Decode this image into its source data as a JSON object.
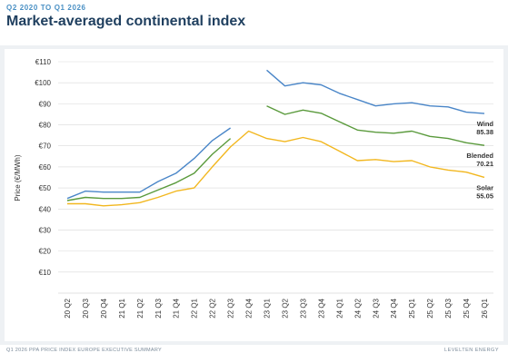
{
  "header": {
    "subtitle": "Q2 2020 TO Q1 2026",
    "title": "Market-averaged continental index"
  },
  "footer": {
    "left": "Q1 2026 PPA PRICE INDEX EUROPE EXECUTIVE SUMMARY",
    "right": "LEVELTEN ENERGY"
  },
  "colors": {
    "wind": "#4a86c8",
    "blended": "#5a9a3c",
    "solar": "#f2b71f",
    "grid": "#d9d9d9"
  },
  "chart_data": {
    "type": "line",
    "title": "Market-averaged continental index",
    "ylabel": "Price (€/MWh)",
    "xlabel": "",
    "ylim": [
      0,
      110
    ],
    "yticks": [
      "€10",
      "€20",
      "€30",
      "€40",
      "€50",
      "€60",
      "€70",
      "€80",
      "€90",
      "€100",
      "€110"
    ],
    "ytick_values": [
      10,
      20,
      30,
      40,
      50,
      60,
      70,
      80,
      90,
      100,
      110
    ],
    "grid": true,
    "categories": [
      "20 Q2",
      "20 Q3",
      "20 Q4",
      "21 Q1",
      "21 Q2",
      "21 Q3",
      "21 Q4",
      "22 Q1",
      "22 Q2",
      "22 Q3",
      "22 Q4",
      "23 Q1",
      "23 Q2",
      "23 Q3",
      "23 Q4",
      "24 Q1",
      "24 Q2",
      "24 Q3",
      "24 Q4",
      "25 Q1",
      "25 Q2",
      "25 Q3",
      "25 Q4",
      "26 Q1"
    ],
    "series": [
      {
        "name": "Wind",
        "end_label": "85.38",
        "key": "wind",
        "values": [
          45,
          48.5,
          48,
          48,
          48,
          53,
          57,
          64,
          72.5,
          78.5,
          null,
          106,
          98.5,
          100,
          99,
          95,
          92,
          89,
          90,
          90.5,
          89,
          88.5,
          86,
          85.38
        ]
      },
      {
        "name": "Blended",
        "end_label": "70.21",
        "key": "blended",
        "values": [
          44,
          45.5,
          45,
          45,
          45.5,
          49,
          52.5,
          57,
          66,
          73.5,
          null,
          89,
          85,
          87,
          85.5,
          81.5,
          77.5,
          76.5,
          76,
          77,
          74.5,
          73.5,
          71.5,
          70.21
        ]
      },
      {
        "name": "Solar",
        "end_label": "55.05",
        "key": "solar",
        "values": [
          42.5,
          42.5,
          41.5,
          42,
          43,
          45.5,
          48.5,
          50,
          60,
          69.5,
          77,
          73.5,
          72,
          74,
          72,
          67.5,
          63,
          63.5,
          62.5,
          63,
          60,
          58.5,
          57.5,
          55.05
        ]
      }
    ]
  }
}
